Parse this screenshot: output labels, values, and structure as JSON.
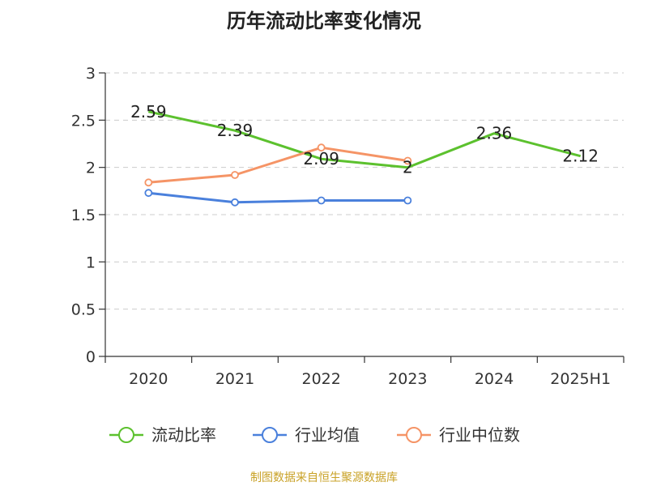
{
  "title": "历年流动比率变化情况",
  "source": "制图数据来自恒生聚源数据库",
  "chart_data": {
    "type": "line",
    "categories": [
      "2020",
      "2021",
      "2022",
      "2023",
      "2024",
      "2025H1"
    ],
    "ylim": [
      0,
      3
    ],
    "yticks": [
      "0",
      "0.5",
      "1",
      "1.5",
      "2",
      "2.5",
      "3"
    ],
    "grid": true,
    "legend_position": "bottom",
    "series": [
      {
        "name": "流动比率",
        "color": "#5cc12e",
        "marker": "none",
        "values": [
          2.59,
          2.39,
          2.09,
          2,
          2.36,
          2.12
        ],
        "labels": [
          "2.59",
          "2.39",
          "2.09",
          "2",
          "2.36",
          "2.12"
        ]
      },
      {
        "name": "行业均值",
        "color": "#4a80dc",
        "marker": "hollow-circle",
        "values": [
          1.73,
          1.63,
          1.65,
          1.65,
          null,
          null
        ]
      },
      {
        "name": "行业中位数",
        "color": "#f59466",
        "marker": "hollow-circle",
        "values": [
          1.84,
          1.92,
          2.21,
          2.07,
          null,
          null
        ]
      }
    ]
  }
}
